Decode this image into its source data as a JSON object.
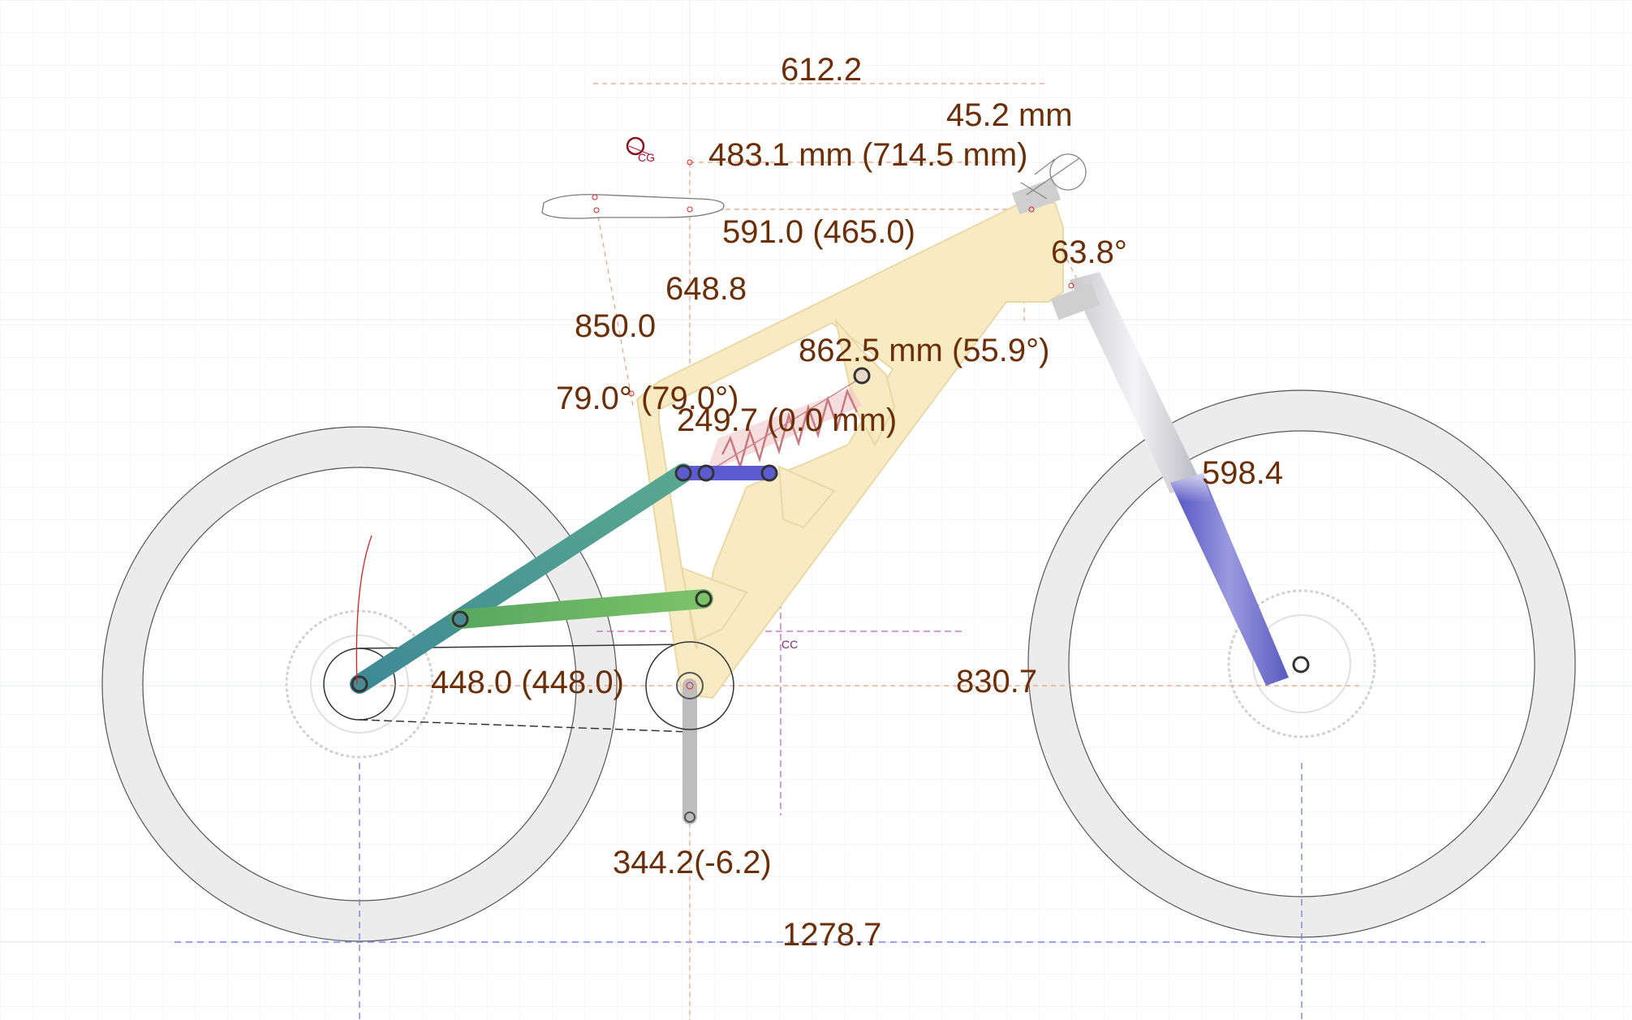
{
  "markers": {
    "center_of_gravity": "CG",
    "crank_center": "CC"
  },
  "dimensions": {
    "reach_total": "612.2",
    "headset_spacer": "45.2 mm",
    "stack": "483.1 mm (714.5 mm)",
    "effective_top_tube": "591.0 (465.0)",
    "head_angle": "63.8°",
    "seat_tube_length": "648.8",
    "seat_height": "850.0",
    "shock_eye_to_eye": "862.5 mm (55.9°)",
    "seat_angle": "79.0° (79.0°)",
    "shock_travel": "249.7 (0.0 mm)",
    "fork_length": "598.4",
    "chainstay": "448.0 (448.0)",
    "front_center": "830.7",
    "bb_height": "344.2(-6.2)",
    "wheelbase": "1278.7"
  },
  "colors": {
    "frame": "#f8ebc4",
    "frame_stroke": "#ead9a4",
    "seatstay": "#4a9a98",
    "chainstay_link": "#62b060",
    "rocker": "#5c5cd0",
    "fork_lower": "#6b6bc8",
    "shock_spring": "#c87a80",
    "dimension_text": "#6b2e06",
    "dimension_line": "#e8a07a",
    "cc_marker": "#b040b0"
  }
}
